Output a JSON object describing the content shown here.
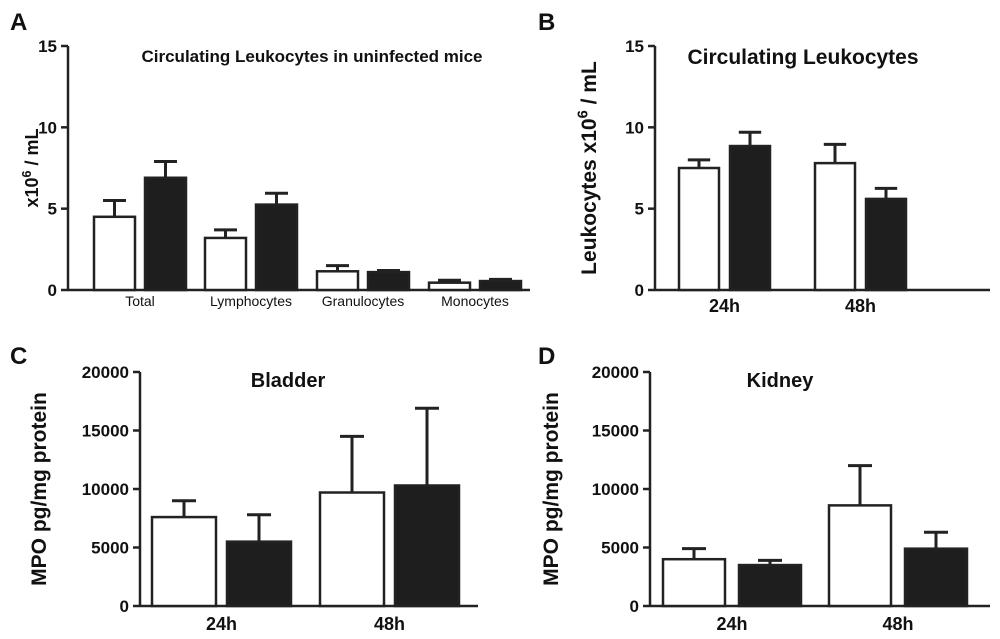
{
  "chart_data": [
    {
      "panel": "A",
      "type": "bar",
      "title": "Circulating Leukocytes in uninfected mice",
      "ylabel_prefix": "x10",
      "ylabel_exponent": "6",
      "ylabel_suffix": " / mL",
      "xlabel": "",
      "ylim": [
        0,
        15
      ],
      "yticks": [
        0,
        5,
        10,
        15
      ],
      "categories": [
        "Total",
        "Lymphocytes",
        "Granulocytes",
        "Monocytes"
      ],
      "series": [
        {
          "color": "#ffffff",
          "values": [
            4.5,
            3.2,
            1.15,
            0.45
          ],
          "errors": [
            1.0,
            0.5,
            0.35,
            0.15
          ]
        },
        {
          "color": "#1e1e1e",
          "values": [
            6.9,
            5.25,
            1.1,
            0.55
          ],
          "errors": [
            1.0,
            0.7,
            0.1,
            0.1
          ]
        }
      ]
    },
    {
      "panel": "B",
      "type": "bar",
      "title": "Circulating Leukocytes",
      "ylabel_prefix": "Leukocytes x10",
      "ylabel_exponent": "6",
      "ylabel_suffix": " / mL",
      "xlabel": "",
      "ylim": [
        0,
        15
      ],
      "yticks": [
        0,
        5,
        10,
        15
      ],
      "categories": [
        "24h",
        "48h"
      ],
      "series": [
        {
          "color": "#ffffff",
          "values": [
            7.5,
            7.8
          ],
          "errors": [
            0.5,
            1.15
          ]
        },
        {
          "color": "#1e1e1e",
          "values": [
            8.85,
            5.6
          ],
          "errors": [
            0.85,
            0.65
          ]
        }
      ]
    },
    {
      "panel": "C",
      "type": "bar",
      "title": "Bladder",
      "ylabel": "MPO pg/mg protein",
      "xlabel": "",
      "ylim": [
        0,
        20000
      ],
      "yticks": [
        0,
        5000,
        10000,
        15000,
        20000
      ],
      "categories": [
        "24h",
        "48h"
      ],
      "series": [
        {
          "color": "#ffffff",
          "values": [
            7600,
            9700
          ],
          "errors": [
            1400,
            4800
          ]
        },
        {
          "color": "#1e1e1e",
          "values": [
            5500,
            10300
          ],
          "errors": [
            2300,
            6600
          ]
        }
      ]
    },
    {
      "panel": "D",
      "type": "bar",
      "title": "Kidney",
      "ylabel": "MPO pg/mg protein",
      "xlabel": "",
      "ylim": [
        0,
        20000
      ],
      "yticks": [
        0,
        5000,
        10000,
        15000,
        20000
      ],
      "categories": [
        "24h",
        "48h"
      ],
      "series": [
        {
          "color": "#ffffff",
          "values": [
            4000,
            8600
          ],
          "errors": [
            900,
            3400
          ]
        },
        {
          "color": "#1e1e1e",
          "values": [
            3500,
            4900
          ],
          "errors": [
            400,
            1400
          ]
        }
      ]
    }
  ]
}
